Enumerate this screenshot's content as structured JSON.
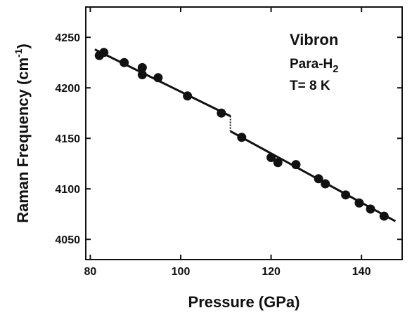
{
  "chart_data": {
    "type": "scatter",
    "title": "",
    "xlabel": "Pressure (GPa)",
    "ylabel": "Raman Frequency (cm",
    "ylabel_sup": "-1",
    "ylabel_close": ")",
    "xlim": [
      79,
      149
    ],
    "ylim": [
      4030,
      4280
    ],
    "xticks": [
      80,
      100,
      120,
      140
    ],
    "yticks": [
      4050,
      4100,
      4150,
      4200,
      4250
    ],
    "xtick_labels": [
      "80",
      "100",
      "120",
      "140"
    ],
    "ytick_labels": [
      "4050",
      "4100",
      "4150",
      "4200",
      "4250"
    ],
    "grid": false,
    "annotations": {
      "line1": "Vibron",
      "line2_main": "Para-H",
      "line2_sub": "2",
      "line3": "T= 8 K"
    },
    "series": [
      {
        "points": [
          {
            "x": 82.0,
            "y": 4232
          },
          {
            "x": 83.0,
            "y": 4235
          },
          {
            "x": 87.5,
            "y": 4225
          },
          {
            "x": 91.5,
            "y": 4220
          },
          {
            "x": 91.5,
            "y": 4213
          },
          {
            "x": 95.0,
            "y": 4210
          },
          {
            "x": 101.5,
            "y": 4192
          },
          {
            "x": 109.0,
            "y": 4175
          },
          {
            "x": 113.5,
            "y": 4151
          },
          {
            "x": 120.0,
            "y": 4131
          },
          {
            "x": 121.5,
            "y": 4126
          },
          {
            "x": 125.5,
            "y": 4124
          },
          {
            "x": 130.5,
            "y": 4110
          },
          {
            "x": 132.0,
            "y": 4105
          },
          {
            "x": 136.5,
            "y": 4094
          },
          {
            "x": 139.5,
            "y": 4086
          },
          {
            "x": 142.0,
            "y": 4080
          },
          {
            "x": 145.0,
            "y": 4073
          }
        ]
      }
    ],
    "fit_segments": [
      {
        "x": [
          81.0,
          111.0
        ],
        "y": [
          4238,
          4172
        ]
      },
      {
        "x": [
          111.0,
          147.5
        ],
        "y": [
          4157,
          4068
        ]
      }
    ],
    "discontinuity": {
      "x": 111.0,
      "y": [
        4172,
        4157
      ]
    }
  }
}
